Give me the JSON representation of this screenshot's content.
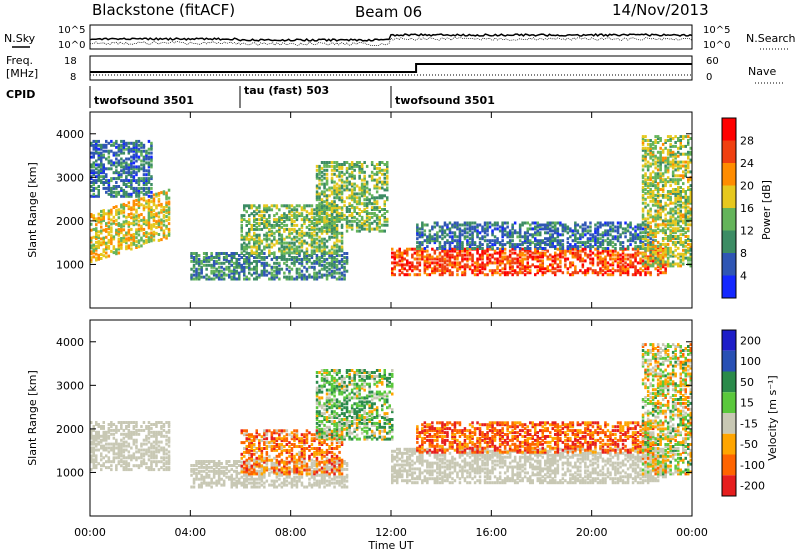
{
  "header": {
    "radar_name": "Blackstone (fitACF)",
    "beam": "Beam 06",
    "date": "14/Nov/2013"
  },
  "noise_panel": {
    "left_label": "N.Sky",
    "right_label": "N.Search",
    "left_ticks": [
      "10^5",
      "10^0"
    ],
    "right_ticks": [
      "10^5",
      "10^0"
    ]
  },
  "freq_panel": {
    "left_label_top": "Freq.",
    "left_label_unit": "[MHz]",
    "right_label": "Nave",
    "left_ticks": [
      "18",
      "8"
    ],
    "right_ticks": [
      "60",
      "0"
    ]
  },
  "cpid_panel": {
    "label": "CPID",
    "segments": [
      {
        "start_hour": 0,
        "name": "twofsound 3501"
      },
      {
        "start_hour": 6,
        "name": "tau (fast) 503"
      },
      {
        "start_hour": 12,
        "name": "twofsound 3501"
      }
    ]
  },
  "colors": {
    "power_scale": [
      "#1428ff",
      "#2f56b4",
      "#3c8c64",
      "#64b45a",
      "#e6c81e",
      "#ff8c00",
      "#f04010",
      "#ff0000"
    ],
    "velocity_scale": [
      "#1e1ec8",
      "#2850b4",
      "#2a8a4a",
      "#5ac83c",
      "#c8c8b4",
      "#ffa500",
      "#ff6400",
      "#e61e1e"
    ],
    "ground_scatter": "#c8c8b4"
  },
  "chart_data": [
    {
      "type": "heatmap",
      "panel": "power",
      "xlabel": "Time UT",
      "ylabel": "Slant Range [km]",
      "xlim": [
        0,
        24
      ],
      "ylim": [
        0,
        4500
      ],
      "x_ticks": [
        "00:00",
        "04:00",
        "08:00",
        "12:00",
        "16:00",
        "20:00",
        "00:00"
      ],
      "y_ticks": [
        1000,
        2000,
        3000,
        4000
      ],
      "colorbar": {
        "label": "Power [dB]",
        "ticks": [
          "4",
          "8",
          "12",
          "16",
          "20",
          "24",
          "28"
        ],
        "range": [
          0,
          32
        ]
      },
      "echo_regions": [
        {
          "t_start": 0.0,
          "t_end": 3.2,
          "range_start_km": 1100,
          "range_end_km": 2200,
          "level_db": 18,
          "note": "band rising with time"
        },
        {
          "t_start": 0.0,
          "t_end": 2.5,
          "range_start_km": 2600,
          "range_end_km": 3900,
          "level_db": 8
        },
        {
          "t_start": 4.0,
          "t_end": 10.2,
          "range_start_km": 700,
          "range_end_km": 1300,
          "level_db": 10
        },
        {
          "t_start": 6.0,
          "t_end": 10.0,
          "range_start_km": 1300,
          "range_end_km": 2400,
          "level_db": 14
        },
        {
          "t_start": 9.0,
          "t_end": 11.8,
          "range_start_km": 1800,
          "range_end_km": 3400,
          "level_db": 14
        },
        {
          "t_start": 12.0,
          "t_end": 23.0,
          "range_start_km": 800,
          "range_end_km": 1400,
          "level_db": 26
        },
        {
          "t_start": 13.0,
          "t_end": 22.5,
          "range_start_km": 1400,
          "range_end_km": 2000,
          "level_db": 8
        },
        {
          "t_start": 22.0,
          "t_end": 24.0,
          "range_start_km": 1000,
          "range_end_km": 4000,
          "level_db": 16
        }
      ]
    },
    {
      "type": "heatmap",
      "panel": "velocity",
      "xlabel": "Time UT",
      "ylabel": "Slant Range [km]",
      "xlim": [
        0,
        24
      ],
      "ylim": [
        0,
        4500
      ],
      "x_ticks": [
        "00:00",
        "04:00",
        "08:00",
        "12:00",
        "16:00",
        "20:00",
        "00:00"
      ],
      "y_ticks": [
        1000,
        2000,
        3000,
        4000
      ],
      "colorbar": {
        "label": "Velocity [m s⁻¹]",
        "ticks": [
          "200",
          "100",
          "50",
          "15",
          "-15",
          "-50",
          "-100",
          "-200"
        ],
        "range": [
          -250,
          250
        ]
      },
      "echo_regions": [
        {
          "t_start": 0.0,
          "t_end": 3.2,
          "range_start_km": 1100,
          "range_end_km": 2200,
          "velocity": 0,
          "note": "ground scatter"
        },
        {
          "t_start": 4.0,
          "t_end": 10.2,
          "range_start_km": 700,
          "range_end_km": 1300,
          "velocity": 0,
          "note": "ground scatter"
        },
        {
          "t_start": 6.0,
          "t_end": 10.0,
          "range_start_km": 1000,
          "range_end_km": 2000,
          "velocity": -60
        },
        {
          "t_start": 9.0,
          "t_end": 12.0,
          "range_start_km": 1800,
          "range_end_km": 3400,
          "velocity": 30
        },
        {
          "t_start": 12.0,
          "t_end": 23.0,
          "range_start_km": 800,
          "range_end_km": 1600,
          "velocity": 0,
          "note": "ground scatter"
        },
        {
          "t_start": 13.0,
          "t_end": 22.5,
          "range_start_km": 1500,
          "range_end_km": 2200,
          "velocity": -80
        },
        {
          "t_start": 22.0,
          "t_end": 24.0,
          "range_start_km": 1000,
          "range_end_km": 4000,
          "velocity": 0
        }
      ]
    }
  ]
}
